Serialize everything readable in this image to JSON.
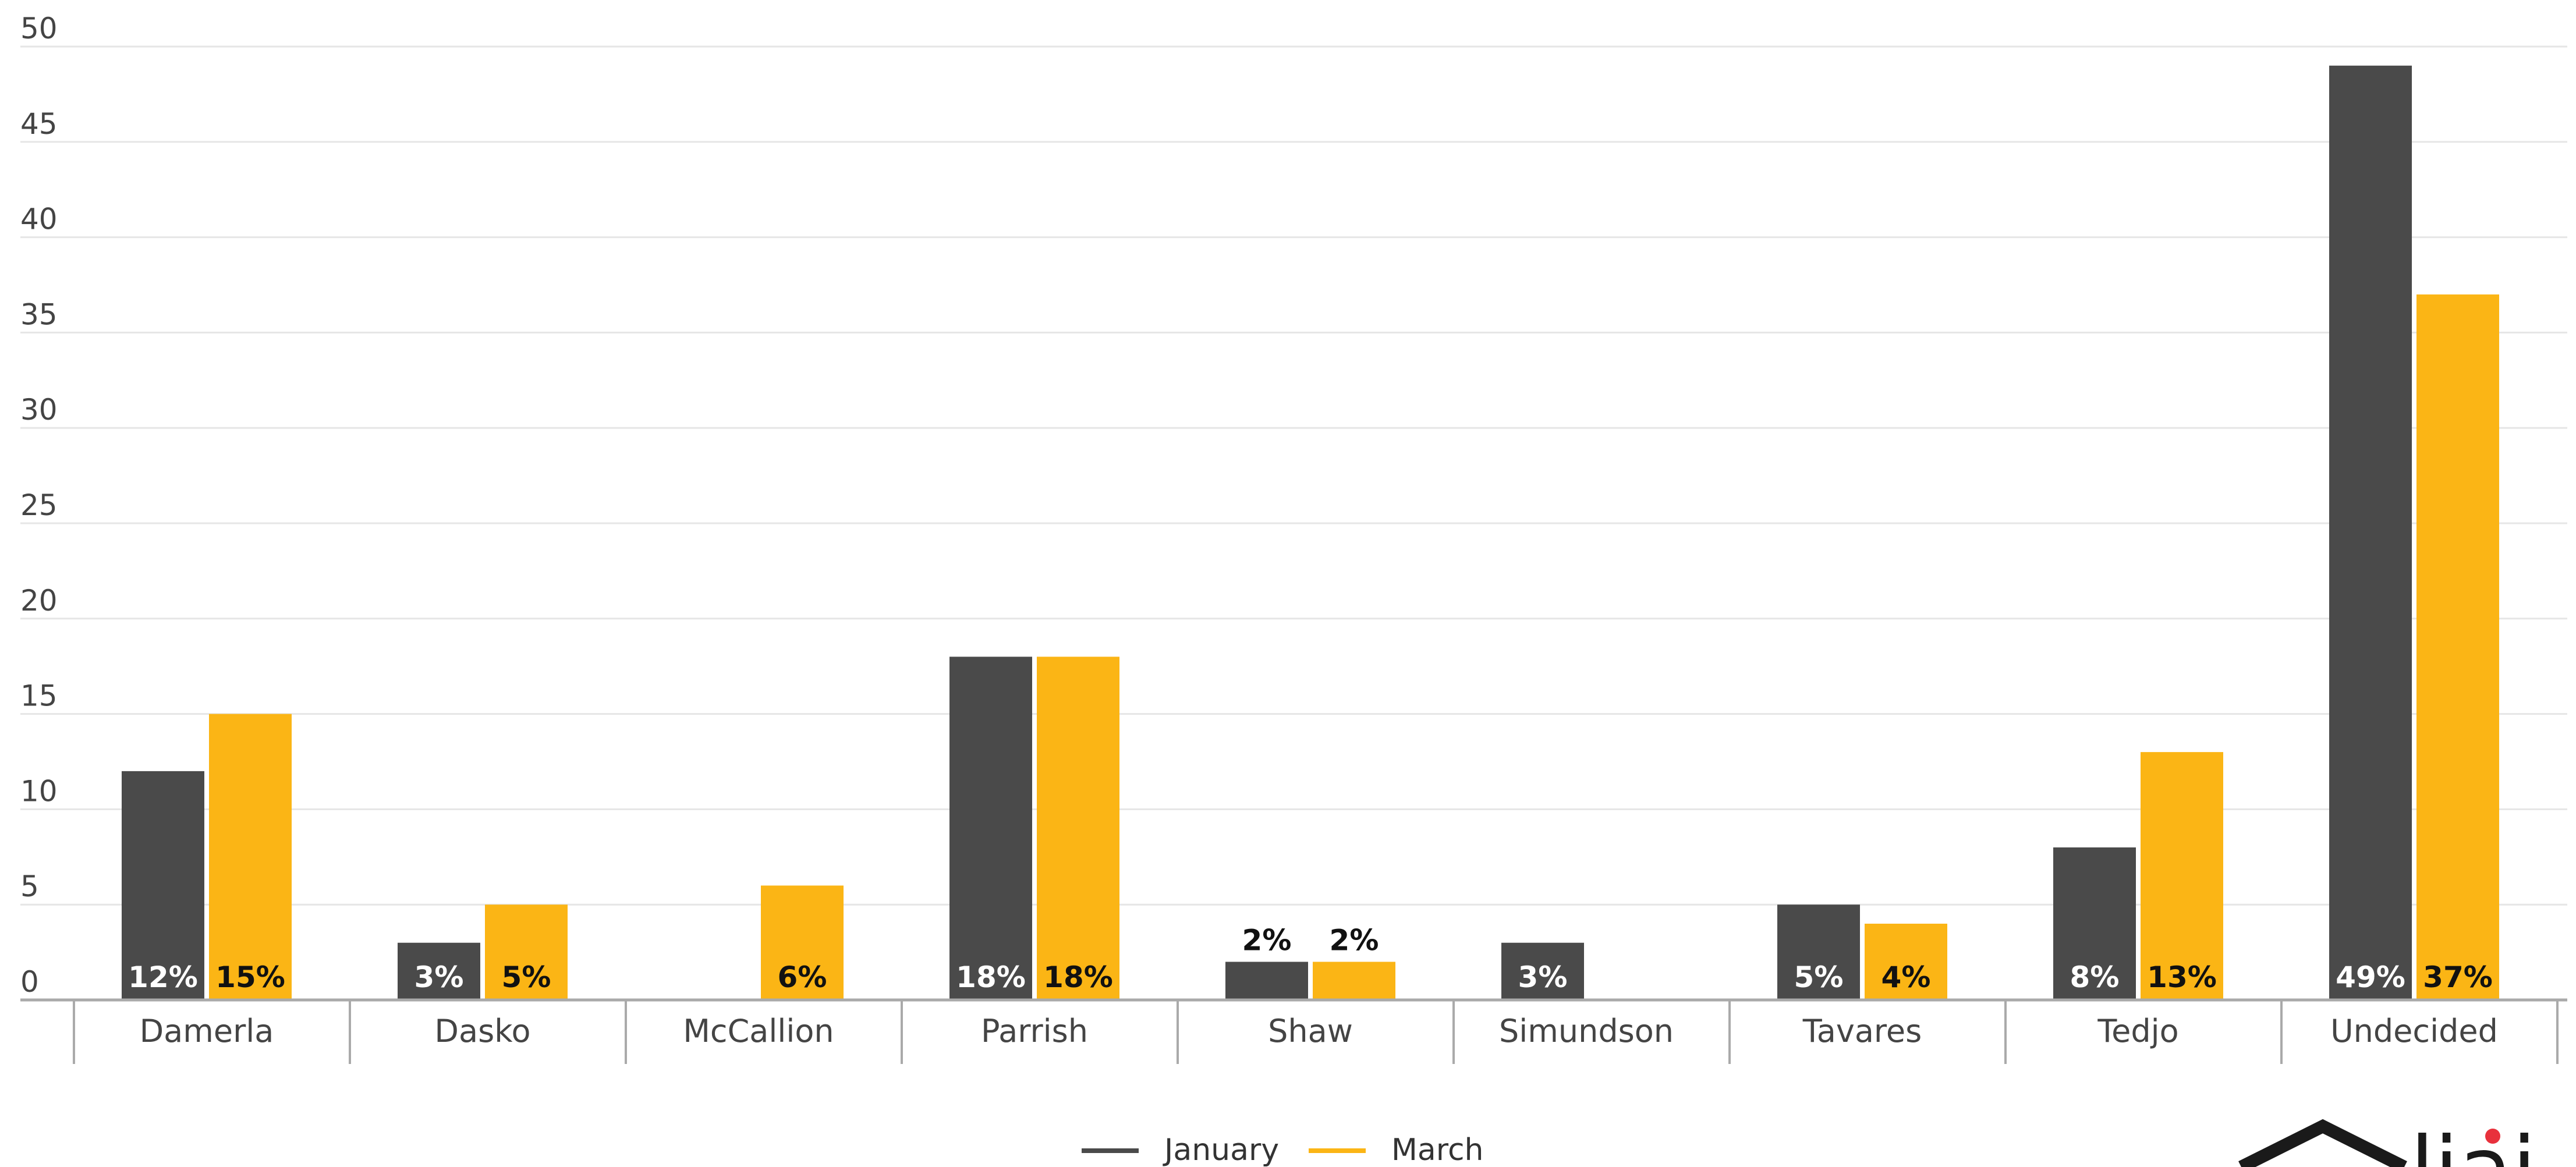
{
  "chart_data": {
    "type": "bar",
    "title": "",
    "xlabel": "",
    "ylabel": "",
    "categories": [
      "Damerla",
      "Dasko",
      "McCallion",
      "Parrish",
      "Shaw",
      "Simundson",
      "Tavares",
      "Tedjo",
      "Undecided"
    ],
    "series": [
      {
        "name": "January",
        "color": "#4a4a4a",
        "label_color": "#ffffff",
        "values": [
          12,
          3,
          null,
          18,
          2,
          3,
          5,
          8,
          49
        ],
        "labels": [
          "12%",
          "3%",
          "",
          "18%",
          "2%",
          "3%",
          "5%",
          "8%",
          "49%"
        ]
      },
      {
        "name": "March",
        "color": "#fbb515",
        "label_color": "#111111",
        "values": [
          15,
          5,
          6,
          18,
          2,
          null,
          4,
          13,
          37
        ],
        "labels": [
          "15%",
          "5%",
          "6%",
          "18%",
          "2%",
          "",
          "4%",
          "13%",
          "37%"
        ]
      }
    ],
    "ylim": [
      0,
      50
    ],
    "yticks": [
      0,
      5,
      10,
      15,
      20,
      25,
      30,
      35,
      40,
      45,
      50
    ],
    "grid": true,
    "legend_position": "bottom-center"
  },
  "logo": {
    "text": "liai"
  },
  "colors": {
    "grid": "#e6e6e6",
    "axis": "#aaaaaa",
    "logo_accent": "#e8313c"
  }
}
